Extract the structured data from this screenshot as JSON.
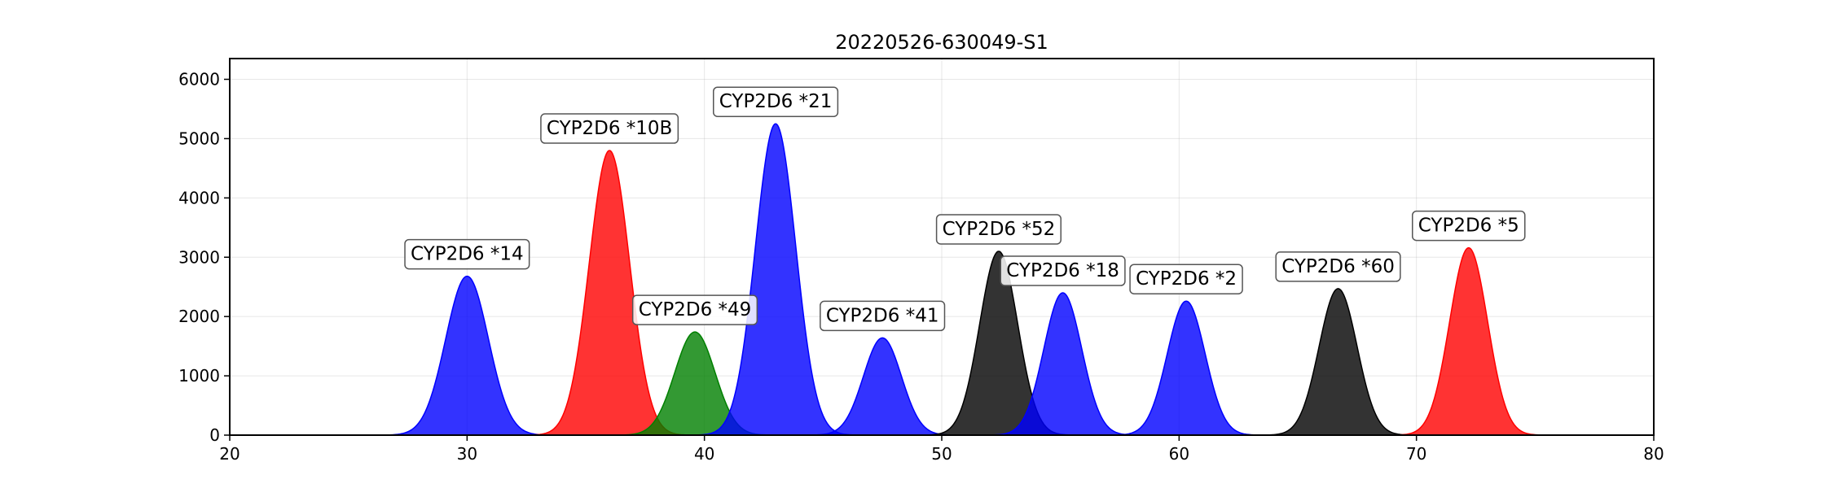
{
  "chart_data": {
    "type": "area",
    "title": "20220526-630049-S1",
    "xlabel": "",
    "ylabel": "",
    "xlim": [
      20,
      80
    ],
    "ylim": [
      0,
      6350
    ],
    "xticks": [
      20,
      30,
      40,
      50,
      60,
      70,
      80
    ],
    "yticks": [
      0,
      1000,
      2000,
      3000,
      4000,
      5000,
      6000
    ],
    "grid": true,
    "legend": "none",
    "colors": {
      "blue": "#0000ff",
      "red": "#ff0000",
      "green": "#008000",
      "black": "#000000"
    },
    "peaks": [
      {
        "label": "CYP2D6 *14",
        "x": 30.0,
        "height": 2680,
        "width": 0.9,
        "color": "#0000ff"
      },
      {
        "label": "CYP2D6 *10B",
        "x": 36.0,
        "height": 4800,
        "width": 0.85,
        "color": "#ff0000"
      },
      {
        "label": "CYP2D6 *49",
        "x": 39.6,
        "height": 1740,
        "width": 0.85,
        "color": "#008000"
      },
      {
        "label": "CYP2D6 *21",
        "x": 43.0,
        "height": 5250,
        "width": 0.85,
        "color": "#0000ff"
      },
      {
        "label": "CYP2D6 *41",
        "x": 47.5,
        "height": 1640,
        "width": 0.8,
        "color": "#0000ff"
      },
      {
        "label": "CYP2D6 *52",
        "x": 52.4,
        "height": 3100,
        "width": 0.8,
        "color": "#000000"
      },
      {
        "label": "CYP2D6 *18",
        "x": 55.1,
        "height": 2400,
        "width": 0.8,
        "color": "#0000ff"
      },
      {
        "label": "CYP2D6 *2",
        "x": 60.3,
        "height": 2260,
        "width": 0.8,
        "color": "#0000ff"
      },
      {
        "label": "CYP2D6 *60",
        "x": 66.7,
        "height": 2470,
        "width": 0.8,
        "color": "#000000"
      },
      {
        "label": "CYP2D6 *5",
        "x": 72.2,
        "height": 3160,
        "width": 0.8,
        "color": "#ff0000"
      }
    ]
  }
}
